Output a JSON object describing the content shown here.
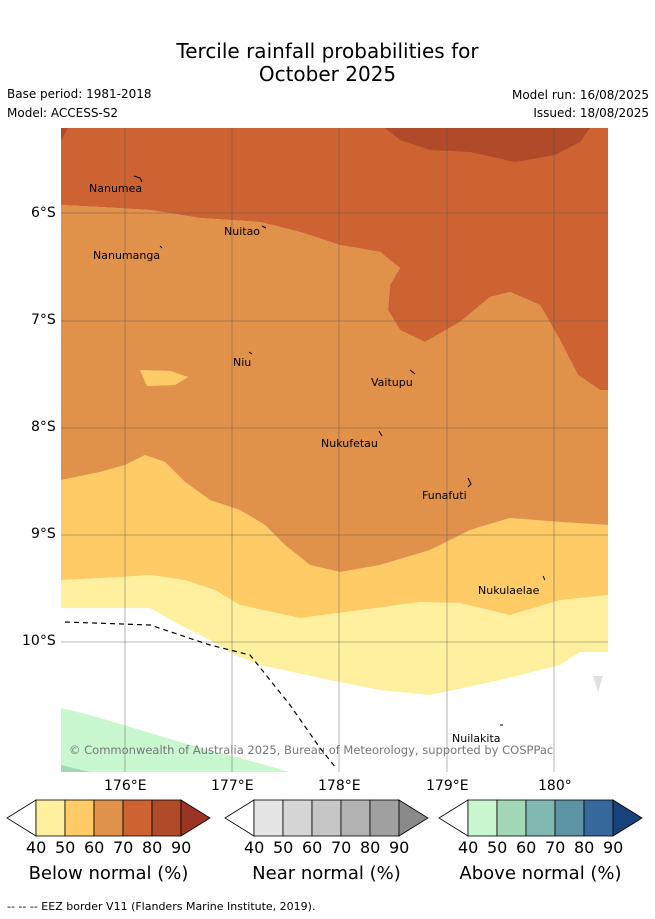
{
  "title_line1": "Tercile rainfall probabilities for",
  "title_line2": "October 2025",
  "base_period": "Base period: 1981-2018",
  "model": "Model: ACCESS-S2",
  "model_run": "Model run: 16/08/2025",
  "issued": "Issued: 18/08/2025",
  "lat_labels": [
    "6°S",
    "7°S",
    "8°S",
    "9°S",
    "10°S"
  ],
  "lon_labels": [
    "176°E",
    "177°E",
    "178°E",
    "179°E",
    "180°"
  ],
  "places": {
    "nanumea": "Nanumea",
    "nuitao": "Nuitao",
    "nanumanga": "Nanumanga",
    "niu": "Niu",
    "vaitupu": "Vaitupu",
    "nukufetau": "Nukufetau",
    "funafuti": "Funafuti",
    "nukulaelae": "Nukulaelae",
    "nuilakita": "Nuilakita"
  },
  "copyright": "© Commonwealth of Australia 2025, Bureau of Meteorology, supported by COSPPac",
  "colorbars": [
    {
      "title": "Below normal (%)",
      "ticks": [
        "40",
        "50",
        "60",
        "70",
        "80",
        "90"
      ],
      "colors": [
        "#ffffff",
        "#fff0a0",
        "#fecb66",
        "#e0914a",
        "#cd6332",
        "#b14a28",
        "#9b3424"
      ]
    },
    {
      "title": "Near normal (%)",
      "ticks": [
        "40",
        "50",
        "60",
        "70",
        "80",
        "90"
      ],
      "colors": [
        "#ffffff",
        "#e5e5e5",
        "#d6d6d6",
        "#c6c6c6",
        "#b3b3b3",
        "#a0a0a0",
        "#8a8a8a"
      ]
    },
    {
      "title": "Above normal (%)",
      "ticks": [
        "40",
        "50",
        "60",
        "70",
        "80",
        "90"
      ],
      "colors": [
        "#ffffff",
        "#c9f7cf",
        "#a2d8b8",
        "#82b8b2",
        "#5c94a3",
        "#36689b",
        "#17427a"
      ]
    }
  ],
  "footer": "--  --  -- EEZ border V11 (Flanders Marine Institute, 2019).",
  "colors": {
    "below_80": "#b14a28",
    "below_70": "#cd6332",
    "below_60": "#e0914a",
    "below_50": "#fecb66",
    "below_40": "#fff0a0",
    "above_40": "#c9f7cf",
    "above_50": "#a2d8b8"
  }
}
